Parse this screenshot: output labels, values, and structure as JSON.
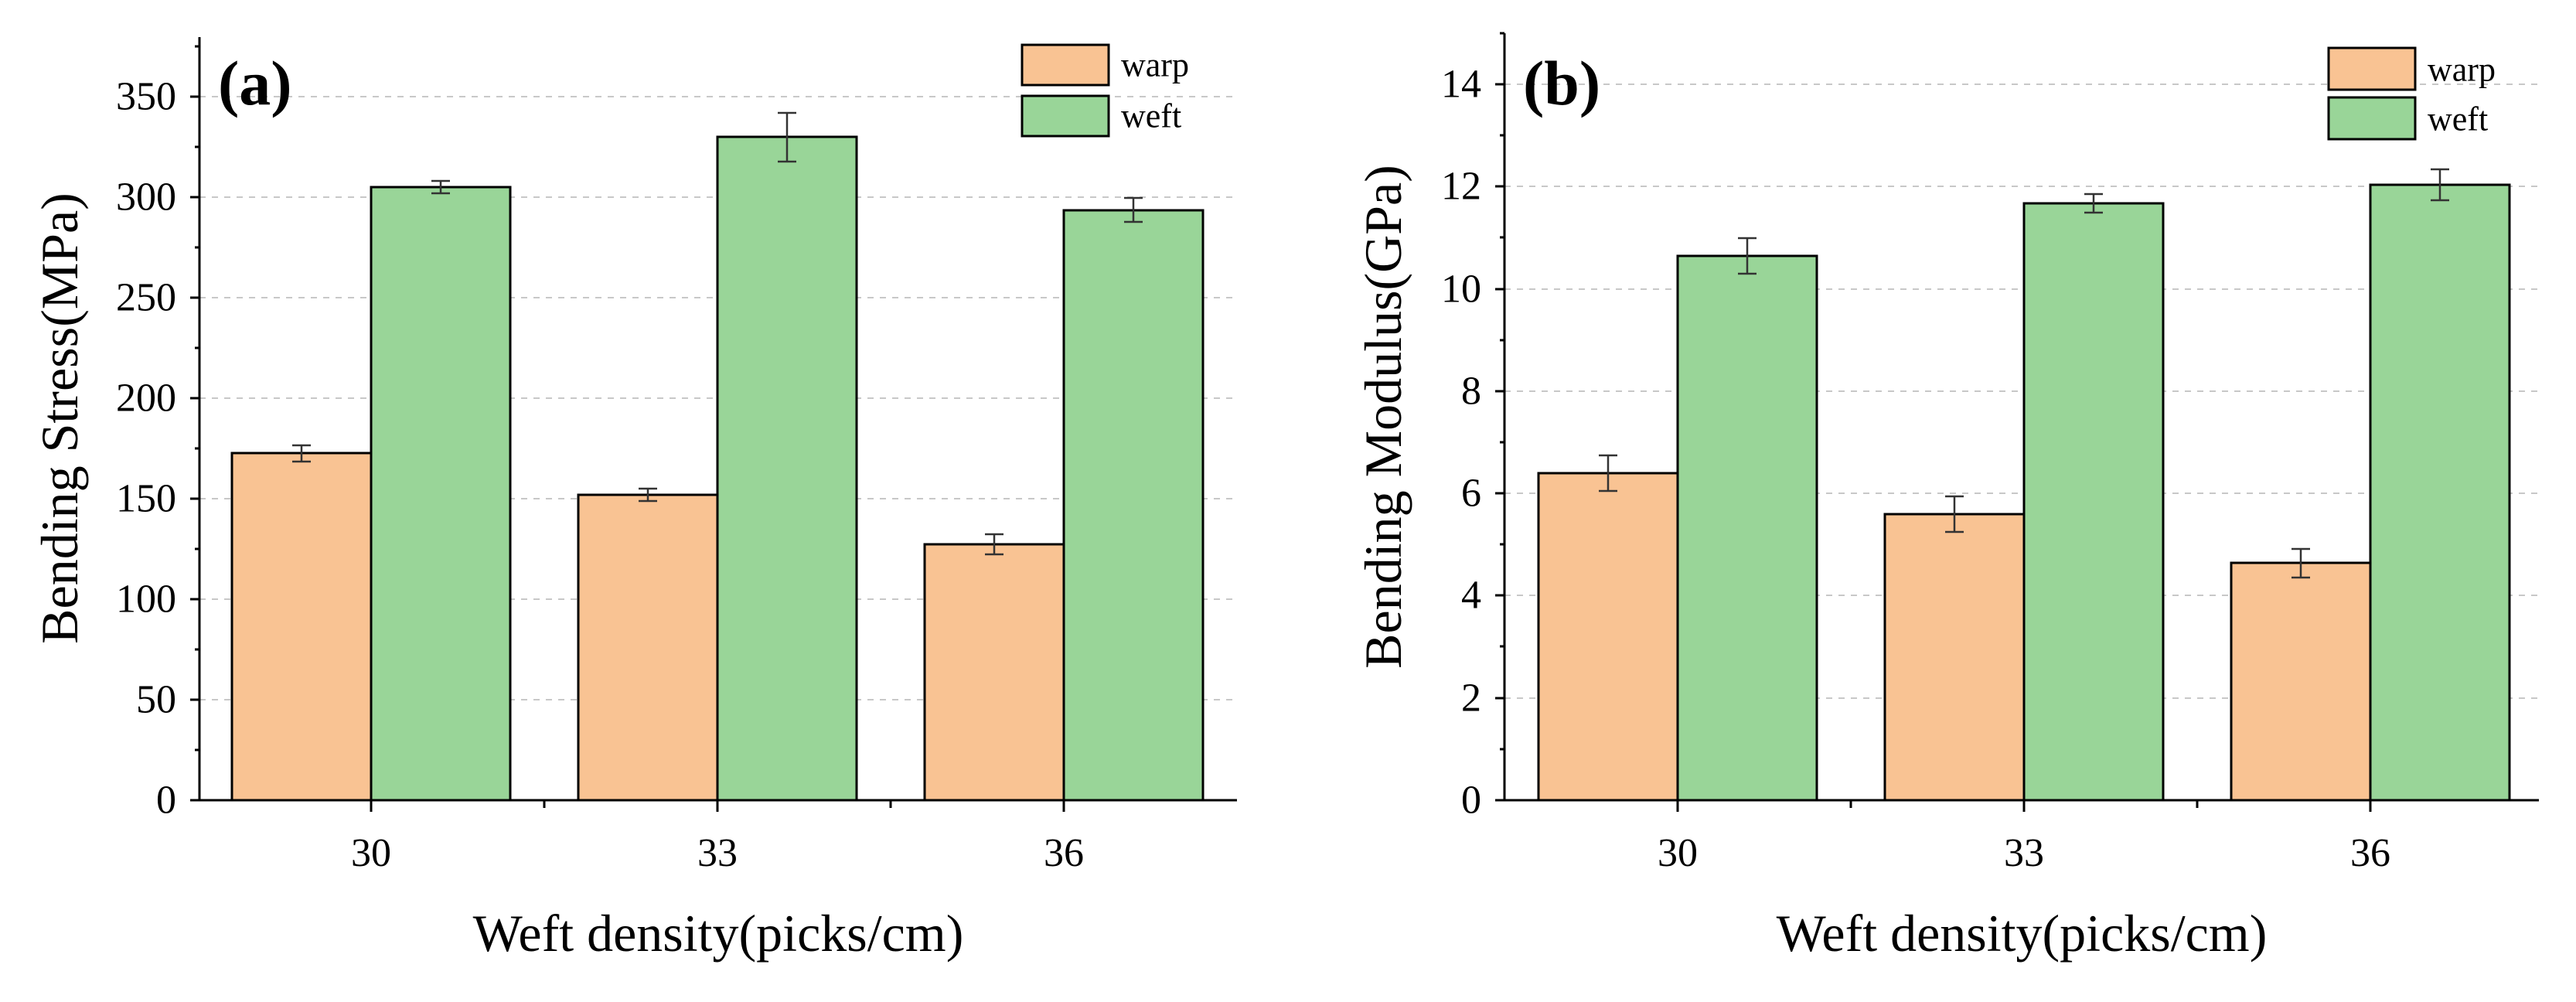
{
  "chart_data": [
    {
      "type": "bar",
      "panel_label": "(a)",
      "categories": [
        "30",
        "33",
        "36"
      ],
      "series": [
        {
          "name": "warp",
          "color": "#F9C393",
          "values": [
            172,
            152,
            128
          ],
          "errors": [
            4,
            3,
            5
          ]
        },
        {
          "name": "weft",
          "color": "#99D598",
          "values": [
            305,
            330,
            293
          ],
          "errors": [
            3,
            12,
            6
          ]
        }
      ],
      "xlabel": "Weft density(picks/cm)",
      "ylabel": "Bending Stress(MPa)",
      "ylim": [
        0,
        380
      ],
      "yticks": [
        "0",
        "50",
        "100",
        "150",
        "200",
        "250",
        "300",
        "350"
      ],
      "grid": true,
      "legend": "top-right"
    },
    {
      "type": "bar",
      "panel_label": "(b)",
      "categories": [
        "30",
        "33",
        "36"
      ],
      "series": [
        {
          "name": "warp",
          "color": "#F9C393",
          "values": [
            6.4,
            5.6,
            4.65
          ],
          "errors": [
            0.35,
            0.35,
            0.28
          ]
        },
        {
          "name": "weft",
          "color": "#99D598",
          "values": [
            10.65,
            11.68,
            12.05
          ],
          "errors": [
            0.35,
            0.18,
            0.3
          ]
        }
      ],
      "xlabel": "Weft density(picks/cm)",
      "ylabel": "Bending Modulus(GPa)",
      "ylim": [
        0,
        15
      ],
      "yticks": [
        "0",
        "2",
        "4",
        "6",
        "8",
        "10",
        "12",
        "14"
      ],
      "grid": true,
      "legend": "top-right"
    }
  ]
}
